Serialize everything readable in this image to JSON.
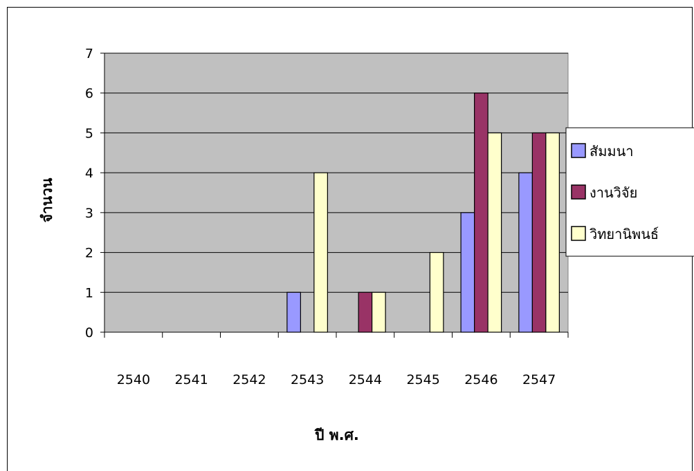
{
  "chart_data": {
    "type": "bar",
    "title": "",
    "xlabel": "ปี พ.ศ.",
    "ylabel": "จำนวน",
    "categories": [
      "2540",
      "2541",
      "2542",
      "2543",
      "2544",
      "2545",
      "2546",
      "2547"
    ],
    "series": [
      {
        "name": "สัมมนา",
        "color": "#9999ff",
        "values": [
          0,
          0,
          0,
          1,
          0,
          0,
          3,
          4
        ]
      },
      {
        "name": "งานวิจัย",
        "color": "#993366",
        "values": [
          0,
          0,
          0,
          0,
          1,
          0,
          6,
          5
        ]
      },
      {
        "name": "วิทยานิพนธ์",
        "color": "#ffffcc",
        "values": [
          0,
          0,
          0,
          4,
          1,
          2,
          5,
          5
        ]
      }
    ],
    "yticks": [
      0,
      1,
      2,
      3,
      4,
      5,
      6,
      7
    ],
    "ylim": [
      0,
      7
    ],
    "grid": true,
    "plot_background": "#c0c0c0",
    "legend_position": "right"
  }
}
